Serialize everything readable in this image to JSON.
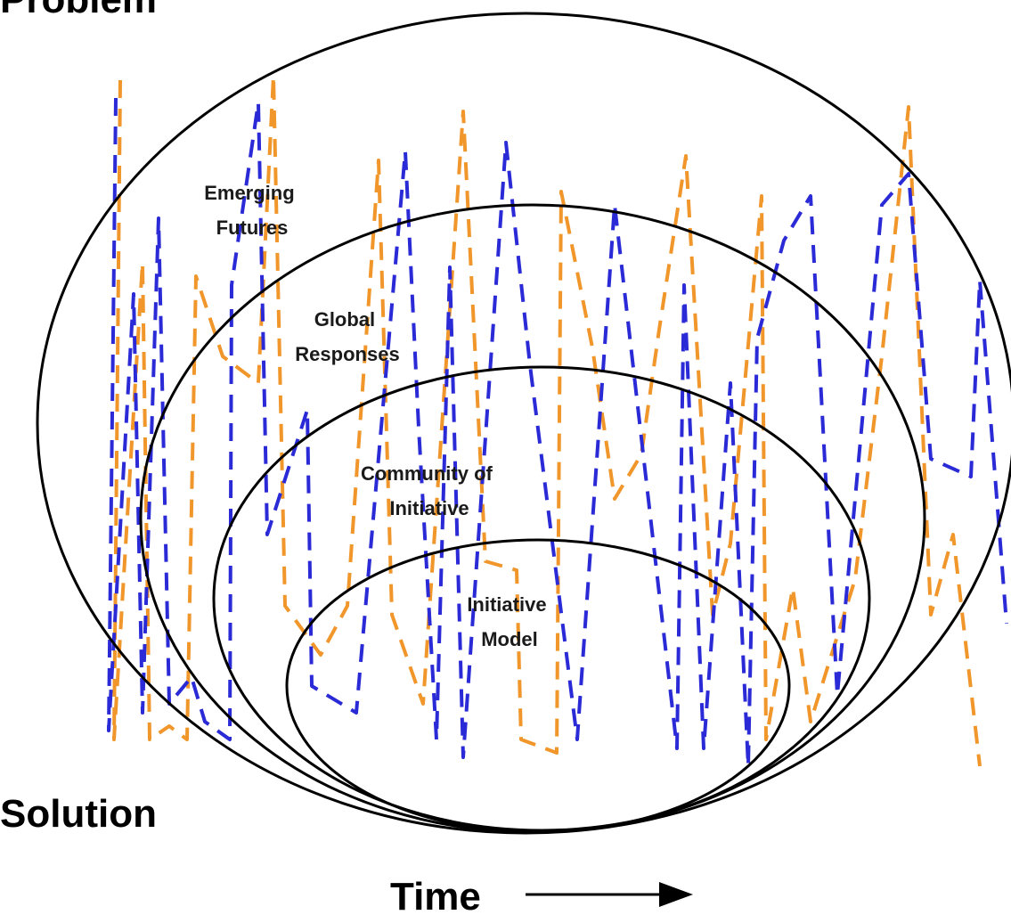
{
  "axis": {
    "top_label": "Problem",
    "bottom_label": "Solution",
    "time_label": "Time"
  },
  "circles": [
    {
      "id": "emerging-futures",
      "lines": [
        "Emerging",
        "Futures"
      ]
    },
    {
      "id": "global-responses",
      "lines": [
        "Global",
        "Responses"
      ]
    },
    {
      "id": "community-of-initiative",
      "lines": [
        "Community of",
        "Initiative"
      ]
    },
    {
      "id": "initiative-model",
      "lines": [
        "Initiative",
        "Model"
      ]
    }
  ],
  "colors": {
    "outline": "#000000",
    "blue_dash": "#2a2ad6",
    "orange_dash": "#f0962a",
    "background": "#ffffff"
  }
}
